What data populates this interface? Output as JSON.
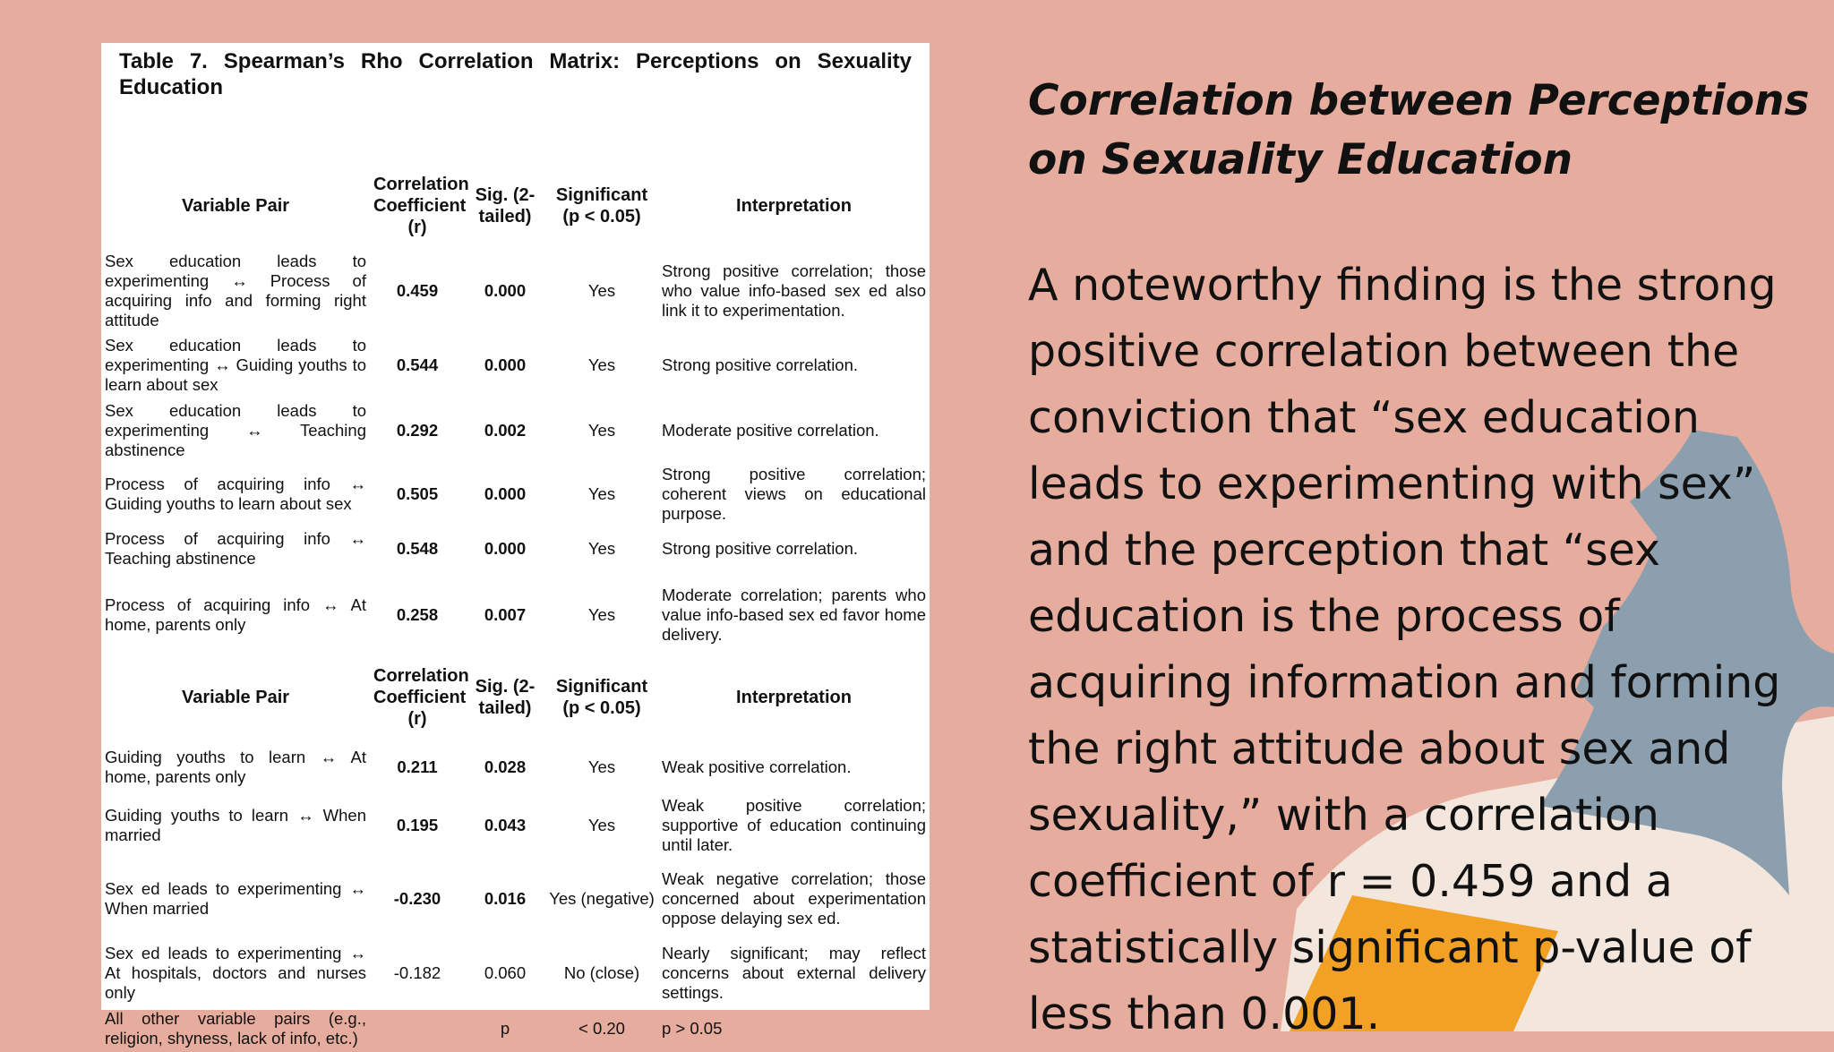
{
  "document": {
    "title": "Table 7. Spearman’s Rho Correlation Matrix: Perceptions on Sexuality Education",
    "columns": [
      "Variable Pair",
      "Correlation Coefficient (r)",
      "Sig. (2-tailed)",
      "Significant (p < 0.05)",
      "Interpretation"
    ],
    "rows_part1": [
      {
        "pair": "Sex education leads to experimenting ↔ Process of acquiring info and forming right attitude",
        "r": "0.459",
        "sig": "0.000",
        "significant": "Yes",
        "interpretation": "Strong positive correlation; those who value info-based sex ed also link it to experimentation."
      },
      {
        "pair": "Sex education leads to experimenting ↔ Guiding youths to learn about sex",
        "r": "0.544",
        "sig": "0.000",
        "significant": "Yes",
        "interpretation": "Strong positive correlation."
      },
      {
        "pair": "Sex education leads to experimenting ↔ Teaching abstinence",
        "r": "0.292",
        "sig": "0.002",
        "significant": "Yes",
        "interpretation": "Moderate positive correlation."
      },
      {
        "pair": "Process of acquiring info ↔ Guiding youths to learn about sex",
        "r": "0.505",
        "sig": "0.000",
        "significant": "Yes",
        "interpretation": "Strong positive correlation; coherent views on educational purpose."
      },
      {
        "pair": "Process of acquiring info ↔ Teaching abstinence",
        "r": "0.548",
        "sig": "0.000",
        "significant": "Yes",
        "interpretation": "Strong positive correlation."
      },
      {
        "pair": "Process of acquiring info ↔ At home, parents only",
        "r": "0.258",
        "sig": "0.007",
        "significant": "Yes",
        "interpretation": "Moderate correlation; parents who value info-based sex ed favor home delivery."
      }
    ],
    "rows_part2": [
      {
        "pair": "Guiding youths to learn ↔ At home, parents only",
        "r": "0.211",
        "sig": "0.028",
        "significant": "Yes",
        "interpretation": "Weak positive correlation."
      },
      {
        "pair": "Guiding youths to learn ↔ When married",
        "r": "0.195",
        "sig": "0.043",
        "significant": "Yes",
        "interpretation": "Weak positive correlation; supportive of education continuing until later."
      },
      {
        "pair": "Sex ed leads to experimenting ↔ When married",
        "r": "-0.230",
        "sig": "0.016",
        "significant": "Yes (negative)",
        "interpretation": "Weak negative correlation; those concerned about experimentation oppose delaying sex ed."
      },
      {
        "pair": "Sex ed leads to experimenting ↔ At hospitals, doctors and nurses only",
        "r": "-0.182",
        "sig": "0.060",
        "significant": "No (close)",
        "interpretation": "Nearly significant; may reflect concerns about external delivery settings."
      },
      {
        "pair": "All other variable pairs (e.g., religion, shyness, lack of info, etc.)",
        "r": "",
        "sig": "p",
        "significant": "< 0.20",
        "interpretation": "p > 0.05"
      }
    ]
  },
  "slide": {
    "heading": "Correlation between Perceptions on Sexuality Education",
    "body": "A noteworthy finding is the strong positive correlation between the conviction that “sex education leads to experimenting with sex” and the perception that “sex education is the process of acquiring information and forming the right attitude about sex and sexuality,” with a correlation coefficient of r = 0.459 and a statistically significant p-value of less than 0.001."
  },
  "colors": {
    "background": "#e6ad9e",
    "shape_blue": "#8c9fae",
    "shape_cream": "#f3e6dc",
    "shape_orange": "#f2a124"
  }
}
